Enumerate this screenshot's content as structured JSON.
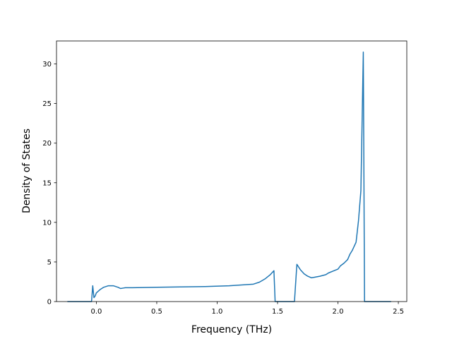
{
  "chart_data": {
    "type": "line",
    "title": "",
    "xlabel": "Frequency (THz)",
    "ylabel": "Density of States",
    "xlim": [
      -0.33,
      2.57
    ],
    "ylim": [
      0,
      32.9
    ],
    "xticks": [
      0.0,
      0.5,
      1.0,
      1.5,
      2.0,
      2.5
    ],
    "xtick_labels": [
      "0.0",
      "0.5",
      "1.0",
      "1.5",
      "2.0",
      "2.5"
    ],
    "yticks": [
      0,
      5,
      10,
      15,
      20,
      25,
      30
    ],
    "ytick_labels": [
      "0",
      "5",
      "10",
      "15",
      "20",
      "25",
      "30"
    ],
    "grid": false,
    "color": "#1f77b4",
    "series": [
      {
        "x": [
          -0.24,
          -0.04,
          -0.03,
          -0.02,
          -0.01,
          0.0,
          0.03,
          0.06,
          0.1,
          0.14,
          0.18,
          0.2,
          0.22,
          0.24,
          0.3,
          0.5,
          0.7,
          0.9,
          1.1,
          1.2,
          1.3,
          1.35,
          1.4,
          1.44,
          1.47,
          1.48,
          1.49,
          1.64,
          1.66,
          1.69,
          1.72,
          1.75,
          1.78,
          1.8,
          1.85,
          1.9,
          1.92,
          1.96,
          2.0,
          2.02,
          2.05,
          2.08,
          2.1,
          2.12,
          2.15,
          2.17,
          2.19,
          2.21,
          2.22,
          2.25,
          2.3,
          2.35,
          2.4,
          2.44
        ],
        "y": [
          0,
          0,
          2.0,
          0.5,
          0.7,
          1.1,
          1.5,
          1.8,
          2.0,
          2.0,
          1.8,
          1.65,
          1.7,
          1.75,
          1.75,
          1.8,
          1.85,
          1.9,
          2.0,
          2.1,
          2.2,
          2.45,
          2.9,
          3.4,
          3.9,
          0.0,
          0.0,
          0.0,
          4.7,
          4.0,
          3.5,
          3.2,
          3.0,
          3.05,
          3.2,
          3.4,
          3.6,
          3.85,
          4.1,
          4.5,
          4.85,
          5.3,
          6.0,
          6.5,
          7.5,
          10.2,
          14.0,
          31.5,
          0.0,
          0.0,
          0.0,
          0.0,
          0.0,
          0.0
        ]
      }
    ]
  }
}
